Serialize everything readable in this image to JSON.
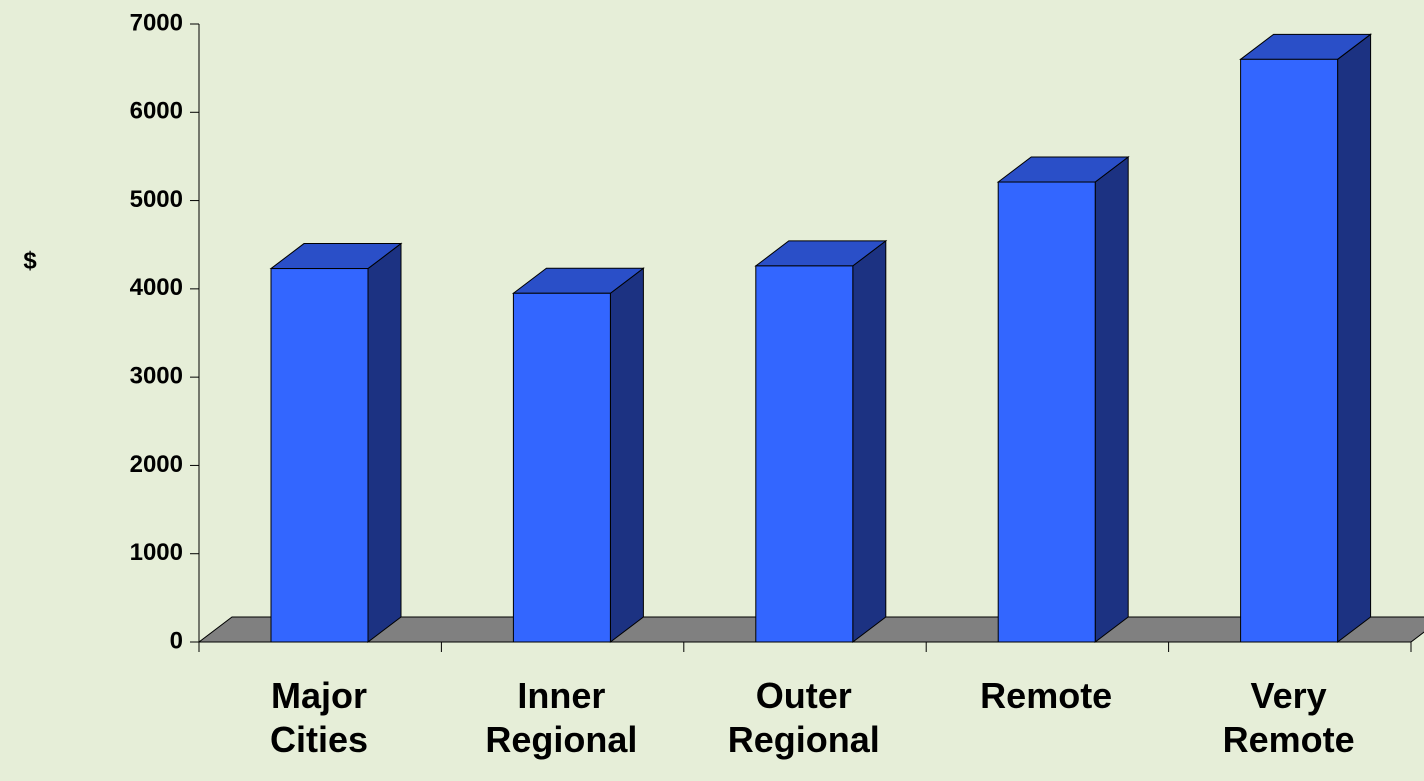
{
  "chart_data": {
    "type": "bar3d",
    "y_label": "$",
    "categories": [
      "Major Cities",
      "Inner Regional",
      "Outer Regional",
      "Remote",
      "Very Remote"
    ],
    "values": [
      4230,
      3950,
      4260,
      5210,
      6600
    ],
    "color": "#3366ff",
    "ylim": [
      0,
      7000
    ],
    "yticks": [
      0,
      1000,
      2000,
      3000,
      4000,
      5000,
      6000,
      7000
    ]
  }
}
